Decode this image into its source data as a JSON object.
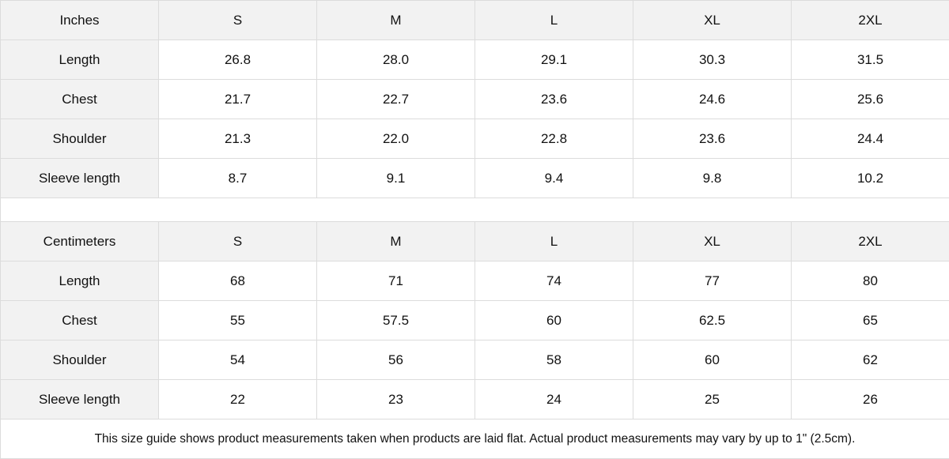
{
  "inches": {
    "header": [
      "Inches",
      "S",
      "M",
      "L",
      "XL",
      "2XL"
    ],
    "rows": [
      [
        "Length",
        "26.8",
        "28.0",
        "29.1",
        "30.3",
        "31.5"
      ],
      [
        "Chest",
        "21.7",
        "22.7",
        "23.6",
        "24.6",
        "25.6"
      ],
      [
        "Shoulder",
        "21.3",
        "22.0",
        "22.8",
        "23.6",
        "24.4"
      ],
      [
        "Sleeve length",
        "8.7",
        "9.1",
        "9.4",
        "9.8",
        "10.2"
      ]
    ]
  },
  "centimeters": {
    "header": [
      "Centimeters",
      "S",
      "M",
      "L",
      "XL",
      "2XL"
    ],
    "rows": [
      [
        "Length",
        "68",
        "71",
        "74",
        "77",
        "80"
      ],
      [
        "Chest",
        "55",
        "57.5",
        "60",
        "62.5",
        "65"
      ],
      [
        "Shoulder",
        "54",
        "56",
        "58",
        "60",
        "62"
      ],
      [
        "Sleeve length",
        "22",
        "23",
        "24",
        "25",
        "26"
      ]
    ]
  },
  "note": "This size guide shows product measurements taken when products are laid flat.  Actual product measurements may vary by up to 1\" (2.5cm).",
  "colors": {
    "header_bg": "#f2f2f2",
    "border": "#dcdcdc"
  }
}
